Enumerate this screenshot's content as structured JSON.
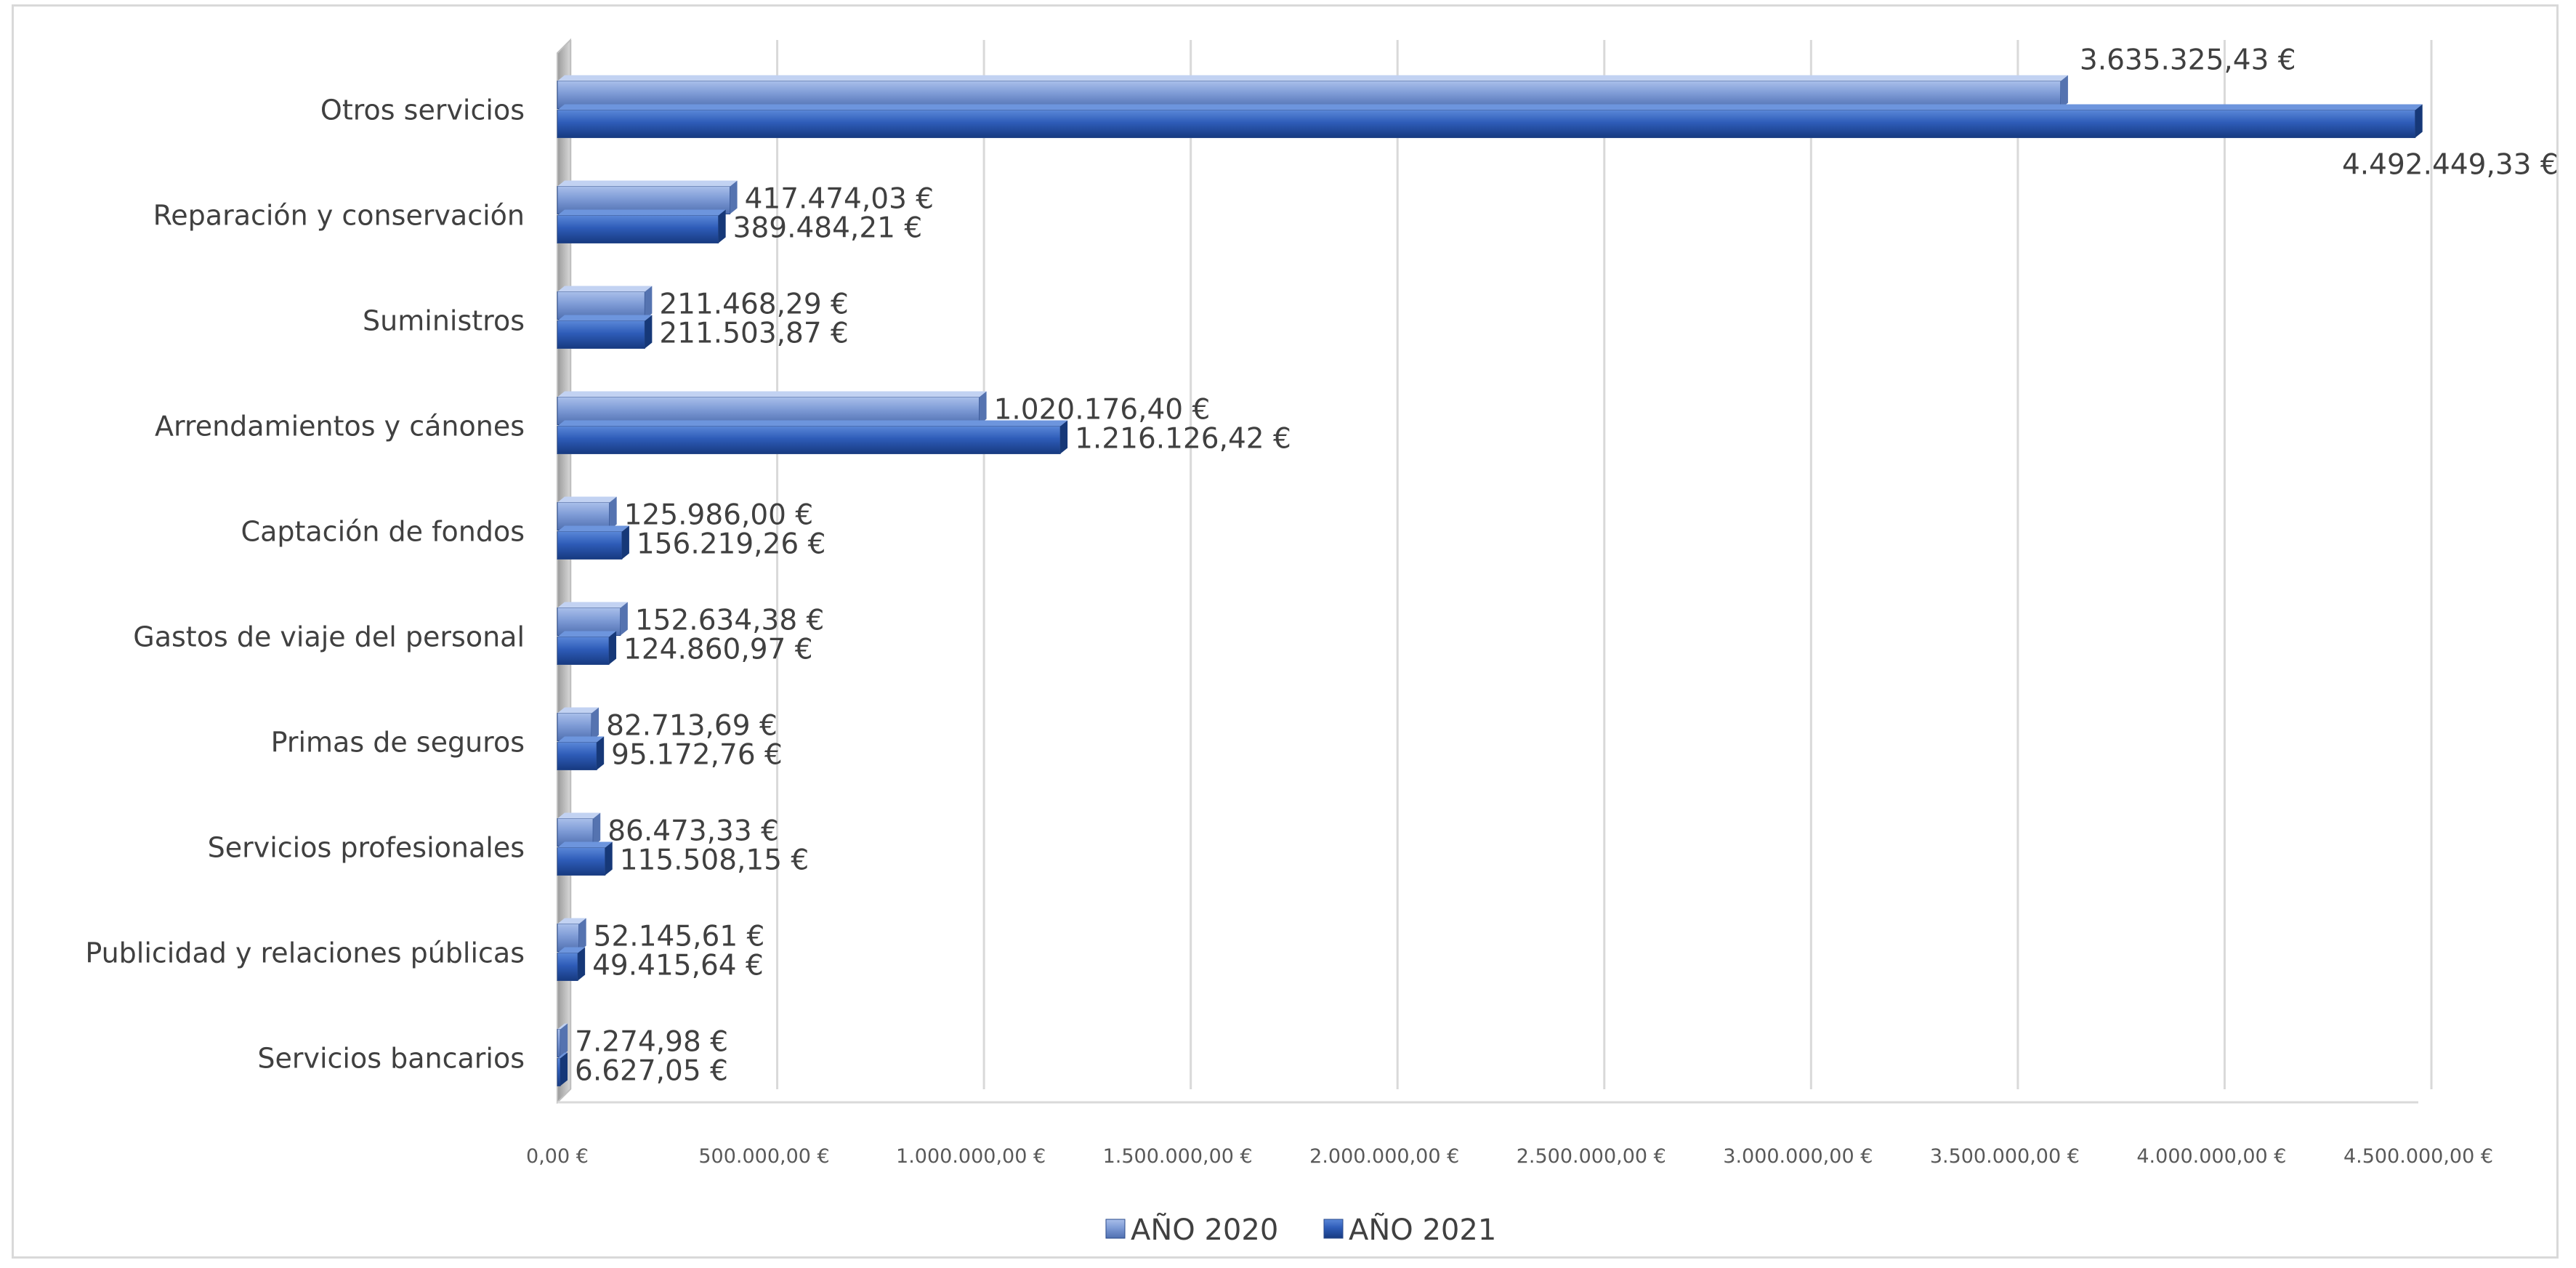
{
  "chart_data": {
    "type": "bar",
    "orientation": "horizontal",
    "style": "3d-clustered",
    "categories": [
      "Servicios bancarios",
      "Publicidad y relaciones públicas",
      "Servicios profesionales",
      "Primas de seguros",
      "Gastos de viaje del personal",
      "Captación de fondos",
      "Arrendamientos y cánones",
      "Suministros",
      "Reparación y conservación",
      "Otros servicios"
    ],
    "series": [
      {
        "name": "AÑO 2020",
        "color": "#7e9bd6",
        "values": [
          7274.98,
          52145.61,
          86473.33,
          82713.69,
          152634.38,
          125986.0,
          1020176.4,
          211468.29,
          417474.03,
          3635325.43
        ],
        "labels": [
          "7.274,98 €",
          "52.145,61 €",
          "86.473,33 €",
          "82.713,69 €",
          "152.634,38 €",
          "125.986,00 €",
          "1.020.176,40 €",
          "211.468,29 €",
          "417.474,03 €",
          "3.635.325,43 €"
        ]
      },
      {
        "name": "AÑO 2021",
        "color": "#2e5cb8",
        "values": [
          6627.05,
          49415.64,
          115508.15,
          95172.76,
          124860.97,
          156219.26,
          1216126.42,
          211503.87,
          389484.21,
          4492449.33
        ],
        "labels": [
          "6.627,05 €",
          "49.415,64 €",
          "115.508,15 €",
          "95.172,76 €",
          "124.860,97 €",
          "156.219,26 €",
          "1.216.126,42 €",
          "211.503,87 €",
          "389.484,21 €",
          "4.492.449,33 €"
        ]
      }
    ],
    "xlim": [
      0,
      4500000
    ],
    "x_ticks": [
      "0,00 €",
      "500.000,00 €",
      "1.000.000,00 €",
      "1.500.000,00 €",
      "2.000.000,00 €",
      "2.500.000,00 €",
      "3.000.000,00 €",
      "3.500.000,00 €",
      "4.000.000,00 €",
      "4.500.000,00 €"
    ],
    "grid": true,
    "legend": "bottom"
  }
}
